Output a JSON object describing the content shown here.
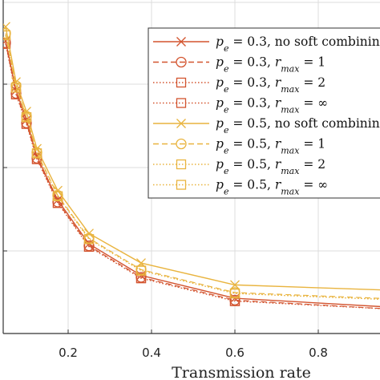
{
  "chart_data": {
    "type": "line",
    "xlabel": "Transmission rate",
    "ylabel": "",
    "xlim": [
      0.05,
      1.0
    ],
    "ylim": [
      0.0,
      3.5
    ],
    "x_ticks": [
      0.2,
      0.4,
      0.6,
      0.8
    ],
    "x_tick_labels": [
      "0.2",
      "0.4",
      "0.6",
      "0.8"
    ],
    "grid": true,
    "legend_position": "top-right",
    "x": [
      0.05,
      0.075,
      0.1,
      0.125,
      0.175,
      0.25,
      0.375,
      0.6,
      1.0
    ],
    "series": [
      {
        "name": "p_e = 0.3, no soft combinin",
        "label_a": "p",
        "label_sub": "e",
        "label_b": " = 0.3, no soft combinin",
        "color": "#d3542f",
        "dash": "solid",
        "marker": "cross",
        "values": [
          3.07,
          2.55,
          2.24,
          1.86,
          1.4,
          0.94,
          0.61,
          0.37,
          0.27
        ]
      },
      {
        "name": "p_e = 0.3, r_max = 1",
        "label_a": "p",
        "label_sub": "e",
        "label_b": " = 0.3, ",
        "label_c": "r",
        "label_sub2": "max",
        "label_d": " = 1",
        "color": "#d3542f",
        "dash": "dashed",
        "marker": "circle",
        "values": [
          3.05,
          2.52,
          2.21,
          1.84,
          1.38,
          0.92,
          0.59,
          0.35,
          0.25
        ]
      },
      {
        "name": "p_e = 0.3, r_max = 2",
        "label_a": "p",
        "label_sub": "e",
        "label_b": " = 0.3, ",
        "label_c": "r",
        "label_sub2": "max",
        "label_d": " = 2",
        "color": "#d3542f",
        "dash": "dotted",
        "marker": "square",
        "values": [
          3.04,
          2.51,
          2.2,
          1.83,
          1.37,
          0.91,
          0.58,
          0.34,
          0.25
        ]
      },
      {
        "name": "p_e = 0.3, r_max = ∞",
        "label_a": "p",
        "label_sub": "e",
        "label_b": " = 0.3, ",
        "label_c": "r",
        "label_sub2": "max",
        "label_d": " = ∞",
        "color": "#d3542f",
        "dash": "dotted",
        "marker": "square",
        "values": [
          3.04,
          2.51,
          2.2,
          1.83,
          1.37,
          0.91,
          0.58,
          0.34,
          0.25
        ]
      },
      {
        "name": "p_e = 0.5, no soft combinin",
        "label_a": "p",
        "label_sub": "e",
        "label_b": " = 0.5, no soft combinin",
        "color": "#e9b43f",
        "dash": "solid",
        "marker": "cross",
        "values": [
          3.22,
          2.64,
          2.33,
          1.94,
          1.5,
          1.05,
          0.74,
          0.51,
          0.45
        ]
      },
      {
        "name": "p_e = 0.5, r_max = 1",
        "label_a": "p",
        "label_sub": "e",
        "label_b": " = 0.5, ",
        "label_c": "r",
        "label_sub2": "max",
        "label_d": " = 1",
        "color": "#e9b43f",
        "dash": "dashed",
        "marker": "circle",
        "values": [
          3.15,
          2.6,
          2.28,
          1.9,
          1.45,
          1.0,
          0.67,
          0.43,
          0.36
        ]
      },
      {
        "name": "p_e = 0.5, r_max = 2",
        "label_a": "p",
        "label_sub": "e",
        "label_b": " = 0.5, ",
        "label_c": "r",
        "label_sub2": "max",
        "label_d": " = 2",
        "color": "#e9b43f",
        "dash": "dotted",
        "marker": "square",
        "values": [
          3.13,
          2.58,
          2.27,
          1.89,
          1.44,
          0.99,
          0.66,
          0.42,
          0.35
        ]
      },
      {
        "name": "p_e = 0.5, r_max = ∞",
        "label_a": "p",
        "label_sub": "e",
        "label_b": " = 0.5, ",
        "label_c": "r",
        "label_sub2": "max",
        "label_d": " = ∞",
        "color": "#e9b43f",
        "dash": "dotted",
        "marker": "square",
        "values": [
          3.13,
          2.58,
          2.27,
          1.89,
          1.44,
          0.99,
          0.66,
          0.42,
          0.35
        ]
      }
    ]
  }
}
